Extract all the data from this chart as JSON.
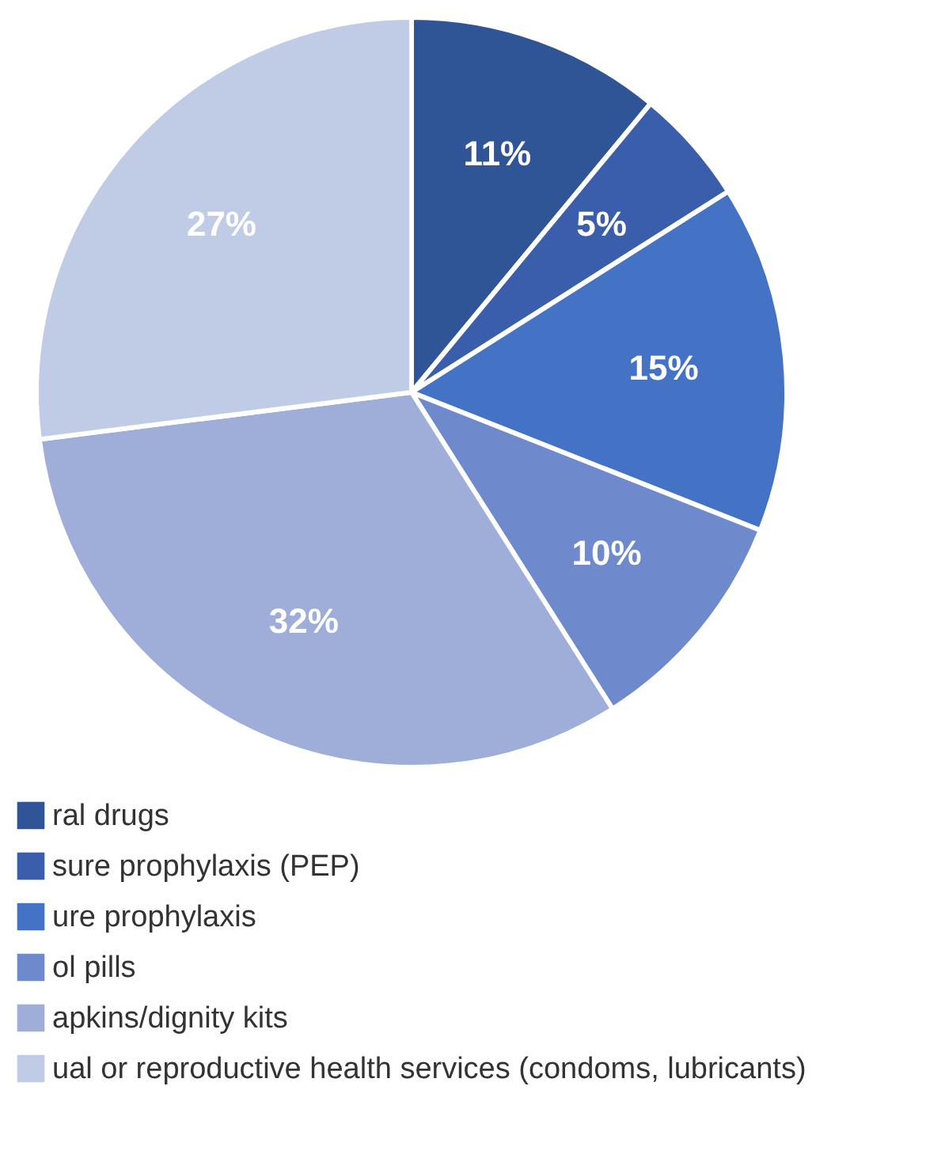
{
  "chart_data": {
    "type": "pie",
    "categories": [
      "ral drugs",
      "sure prophylaxis (PEP)",
      "ure prophylaxis",
      "ol pills",
      "apkins/dignity kits",
      "ual or reproductive health services (condoms, lubricants)"
    ],
    "values": [
      11,
      5,
      15,
      10,
      32,
      27
    ],
    "colors": [
      "#2f5597",
      "#3a5eab",
      "#4472c4",
      "#6e89cc",
      "#9eaed8",
      "#c0cbe6"
    ],
    "value_labels": [
      "11%",
      "5%",
      "15%",
      "10%",
      "32%",
      "27%"
    ],
    "legend": "bottom"
  }
}
